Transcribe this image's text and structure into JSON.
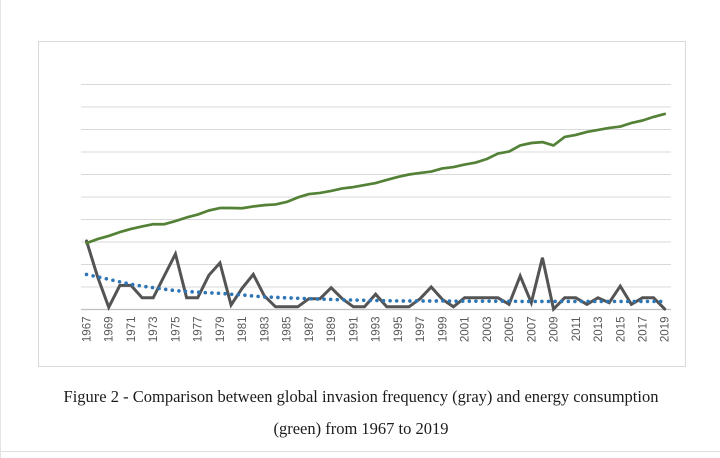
{
  "caption": {
    "line1": "Figure 2 - Comparison between global invasion frequency (gray) and energy consumption",
    "line2": "(green) from 1967 to 2019"
  },
  "chart_data": {
    "type": "line",
    "title": "",
    "xlabel": "",
    "ylabel": "",
    "ylim": [
      0,
      10
    ],
    "grid": "horizontal",
    "legend": "none",
    "y_axis_labels_visible": false,
    "x_tick_labels": [
      "1967",
      "1969",
      "1971",
      "1973",
      "1975",
      "1977",
      "1979",
      "1981",
      "1983",
      "1985",
      "1987",
      "1989",
      "1991",
      "1993",
      "1995",
      "1997",
      "1999",
      "2001",
      "2003",
      "2005",
      "2007",
      "2009",
      "2011",
      "2013",
      "2015",
      "2017",
      "2019"
    ],
    "x": [
      1967,
      1968,
      1969,
      1970,
      1971,
      1972,
      1973,
      1974,
      1975,
      1976,
      1977,
      1978,
      1979,
      1980,
      1981,
      1982,
      1983,
      1984,
      1985,
      1986,
      1987,
      1988,
      1989,
      1990,
      1991,
      1992,
      1993,
      1994,
      1995,
      1996,
      1997,
      1998,
      1999,
      2000,
      2001,
      2002,
      2003,
      2004,
      2005,
      2006,
      2007,
      2008,
      2009,
      2010,
      2011,
      2012,
      2013,
      2014,
      2015,
      2016,
      2017,
      2018,
      2019
    ],
    "series": [
      {
        "name": "global invasion frequency (gray)",
        "color": "#545454",
        "style": "solid",
        "line_width": 3,
        "values": [
          3.05,
          1.45,
          0.1,
          1.07,
          1.07,
          0.52,
          0.52,
          1.5,
          2.47,
          0.52,
          0.52,
          1.52,
          2.07,
          0.2,
          0.95,
          1.56,
          0.6,
          0.12,
          0.12,
          0.12,
          0.48,
          0.48,
          0.97,
          0.48,
          0.12,
          0.12,
          0.68,
          0.12,
          0.12,
          0.12,
          0.48,
          1.0,
          0.45,
          0.12,
          0.52,
          0.52,
          0.52,
          0.52,
          0.23,
          1.49,
          0.3,
          2.3,
          0.02,
          0.52,
          0.52,
          0.23,
          0.52,
          0.3,
          1.04,
          0.23,
          0.52,
          0.52,
          0.02
        ]
      },
      {
        "name": "energy consumption (green)",
        "color": "#538135",
        "style": "solid",
        "line_width": 2.7,
        "values": [
          2.95,
          3.13,
          3.27,
          3.44,
          3.58,
          3.69,
          3.79,
          3.79,
          3.93,
          4.09,
          4.22,
          4.4,
          4.51,
          4.51,
          4.5,
          4.58,
          4.64,
          4.67,
          4.78,
          4.98,
          5.13,
          5.18,
          5.27,
          5.38,
          5.44,
          5.53,
          5.62,
          5.76,
          5.89,
          6.0,
          6.07,
          6.13,
          6.27,
          6.33,
          6.44,
          6.53,
          6.69,
          6.93,
          7.02,
          7.29,
          7.4,
          7.44,
          7.29,
          7.67,
          7.76,
          7.89,
          7.98,
          8.07,
          8.13,
          8.29,
          8.4,
          8.56,
          8.69
        ]
      },
      {
        "name": "invasion frequency trendline (dotted blue)",
        "color": "#2e75b6",
        "style": "dotted",
        "line_width": 2,
        "values": [
          1.56,
          1.45,
          1.34,
          1.23,
          1.12,
          1.04,
          0.97,
          0.9,
          0.84,
          0.8,
          0.77,
          0.74,
          0.72,
          0.68,
          0.65,
          0.6,
          0.56,
          0.54,
          0.52,
          0.5,
          0.48,
          0.46,
          0.45,
          0.43,
          0.42,
          0.41,
          0.4,
          0.39,
          0.38,
          0.38,
          0.38,
          0.38,
          0.38,
          0.37,
          0.37,
          0.37,
          0.37,
          0.37,
          0.37,
          0.36,
          0.36,
          0.36,
          0.36,
          0.36,
          0.36,
          0.36,
          0.36,
          0.36,
          0.36,
          0.36,
          0.36,
          0.36,
          0.36
        ]
      }
    ],
    "colors": {
      "gridline": "#d9d9d9",
      "axis_line": "#bfbfbf",
      "tick_label": "#595959"
    }
  }
}
